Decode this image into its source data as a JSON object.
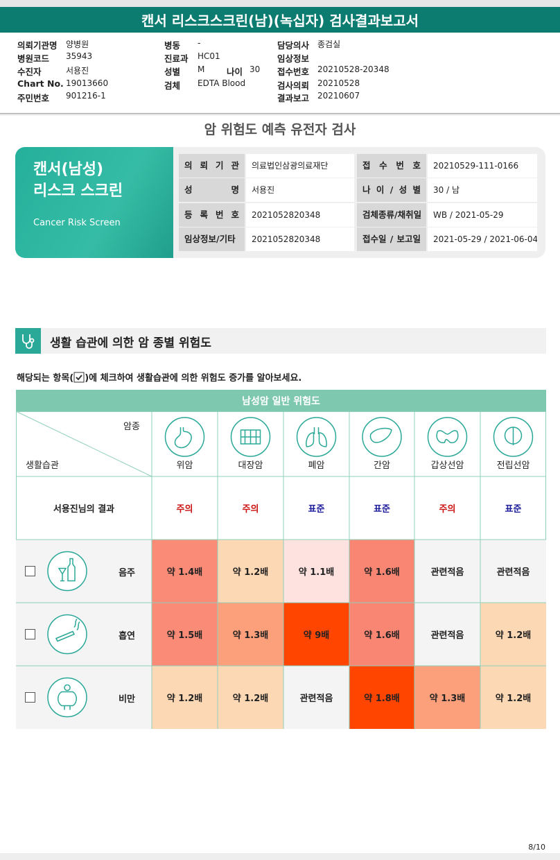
{
  "header": {
    "title": "캔서 리스크스크린(남)(녹십자) 검사결과보고서"
  },
  "info": [
    [
      {
        "label": "의뢰기관명",
        "value": "양병원"
      },
      {
        "label": "병원코드",
        "value": "35943"
      },
      {
        "label": "수진자",
        "value": "서용진"
      },
      {
        "label": "Chart No.",
        "value": "19013660"
      },
      {
        "label": "주민번호",
        "value": "901216-1"
      }
    ],
    [
      {
        "label": "병동",
        "value": "-"
      },
      {
        "label": "진료과",
        "value": "HC01"
      },
      {
        "label": "성별",
        "value": "M",
        "label2": "나이",
        "value2": "30"
      },
      {
        "label": "검체",
        "value": "EDTA Blood"
      }
    ],
    [
      {
        "label": "담당의사",
        "value": "종검실"
      },
      {
        "label": "임상정보"
      },
      {
        "label": "접수번호",
        "value": "20210528-20348"
      },
      {
        "label": "검사의뢰",
        "value": "20210528"
      },
      {
        "label": "결과보고",
        "value": "20210607"
      }
    ]
  ],
  "subtitle": "암 위험도 예측 유전자 검사",
  "card": {
    "title_lines": [
      "캔서(남성)",
      "리스크 스크린"
    ],
    "english": "Cancer Risk Screen",
    "rows": [
      [
        "의 뢰 기 관",
        "의료법인삼광의료재단",
        "접 수 번 호",
        "20210529-111-0166"
      ],
      [
        "성 명",
        "서용진",
        "나 이 / 성 별",
        "30 / 남"
      ],
      [
        "등 록 번 호",
        "2021052820348",
        "검체종류/채취일",
        "WB / 2021-05-29"
      ],
      [
        "임상정보/기타",
        "2021052820348",
        "접수일 / 보고일",
        "2021-05-29 / 2021-06-04"
      ]
    ]
  },
  "section": {
    "title": "생활 습관에 의한 암 종별 위험도",
    "instruction_before": "해당되는 항목(",
    "instruction_after": ")에 체크하여 생활습관에 의한 위험도 증가를 알아보세요."
  },
  "table": {
    "title": "남성암 일반 위험도",
    "corner_top": "암종",
    "corner_bottom": "생활습관",
    "cancers": [
      "위암",
      "대장암",
      "폐암",
      "간암",
      "갑상선암",
      "전립선암"
    ],
    "result_label": "서용진님의 결과",
    "results": [
      {
        "text": "주의",
        "color": "#cc1111"
      },
      {
        "text": "주의",
        "color": "#cc1111"
      },
      {
        "text": "표준",
        "color": "#1a1a9a"
      },
      {
        "text": "표준",
        "color": "#1a1a9a"
      },
      {
        "text": "주의",
        "color": "#cc1111"
      },
      {
        "text": "표준",
        "color": "#1a1a9a"
      }
    ],
    "rows": [
      {
        "label": "음주",
        "cells": [
          {
            "text": "약 1.4배",
            "color": "#f98b77"
          },
          {
            "text": "약 1.2배",
            "color": "#fdd8b4"
          },
          {
            "text": "약 1.1배",
            "color": "#fde2df"
          },
          {
            "text": "약 1.6배",
            "color": "#f98673"
          },
          {
            "text": "관련적음",
            "color": "#f4f4f4"
          },
          {
            "text": "관련적음",
            "color": "#f4f4f4"
          }
        ]
      },
      {
        "label": "흡연",
        "cells": [
          {
            "text": "약 1.5배",
            "color": "#f98b77"
          },
          {
            "text": "약 1.3배",
            "color": "#fca07b"
          },
          {
            "text": "약 9배",
            "color": "#ff4500"
          },
          {
            "text": "약 1.6배",
            "color": "#f98673"
          },
          {
            "text": "관련적음",
            "color": "#f4f4f4"
          },
          {
            "text": "약 1.2배",
            "color": "#fdd8b4"
          }
        ]
      },
      {
        "label": "비만",
        "cells": [
          {
            "text": "약 1.2배",
            "color": "#fdd8b4"
          },
          {
            "text": "약 1.2배",
            "color": "#fdd8b4"
          },
          {
            "text": "관련적음",
            "color": "#f4f4f4"
          },
          {
            "text": "약 1.8배",
            "color": "#ff4500"
          },
          {
            "text": "약 1.3배",
            "color": "#fca07b"
          },
          {
            "text": "약 1.2배",
            "color": "#fdd8b4"
          }
        ]
      }
    ]
  },
  "footer": {
    "page": "8/10"
  }
}
